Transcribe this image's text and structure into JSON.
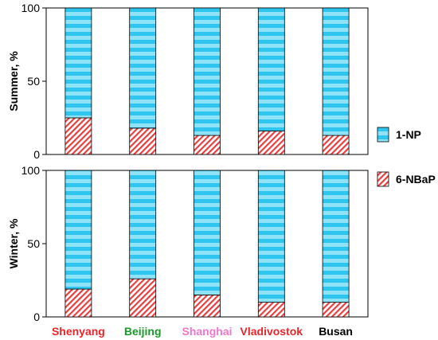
{
  "chart_data": {
    "type": "bar",
    "stacked": true,
    "normalized_percent": true,
    "categories": [
      "Shenyang",
      "Beijing",
      "Shanghai",
      "Vladivostok",
      "Busan"
    ],
    "category_colors": [
      "#e8252a",
      "#1a9a2a",
      "#ee77cc",
      "#e8252a",
      "#000000"
    ],
    "panels": [
      {
        "ylabel": "Summer, %",
        "ylim": [
          0,
          100
        ],
        "yticks": [
          0,
          50,
          100
        ],
        "series": [
          {
            "name": "6-NBaP",
            "values": [
              25,
              18,
              13,
              16,
              13
            ]
          },
          {
            "name": "1-NP",
            "values": [
              75,
              82,
              87,
              84,
              87
            ]
          }
        ]
      },
      {
        "ylabel": "Winter, %",
        "ylim": [
          0,
          100
        ],
        "yticks": [
          0,
          50,
          100
        ],
        "series": [
          {
            "name": "6-NBaP",
            "values": [
              19,
              26,
              15,
              10,
              10
            ]
          },
          {
            "name": "1-NP",
            "values": [
              81,
              74,
              85,
              90,
              90
            ]
          }
        ]
      }
    ],
    "legend": [
      {
        "name": "1-NP",
        "color": "#2ec6ee",
        "pattern": "horizontal-stripes"
      },
      {
        "name": "6-NBaP",
        "color": "#e84040",
        "pattern": "diagonal-hatch"
      }
    ],
    "legend_position": "right"
  }
}
